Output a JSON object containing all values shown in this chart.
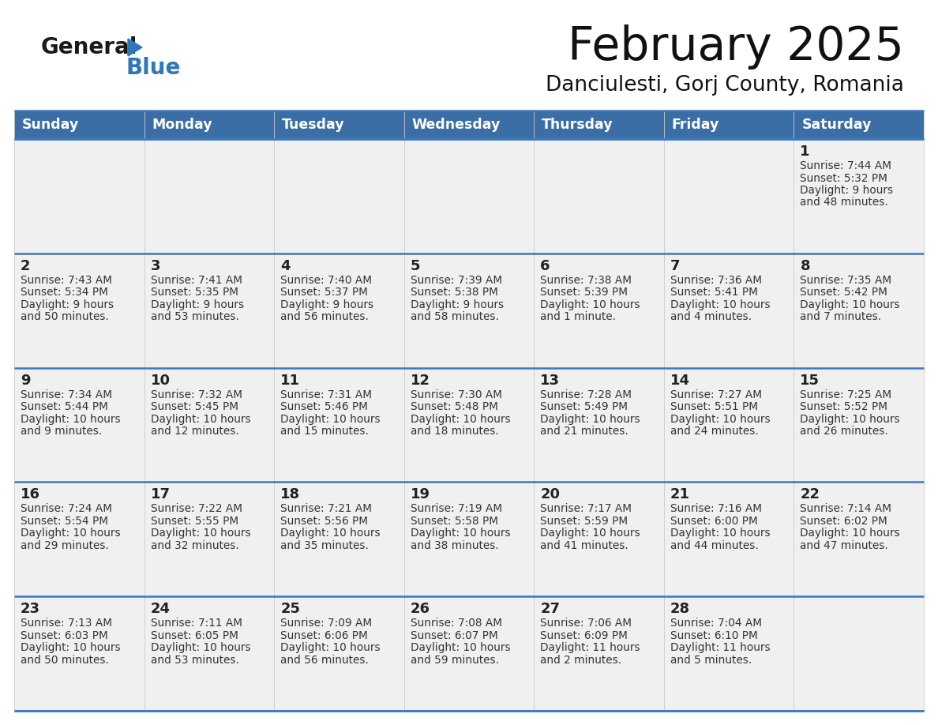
{
  "title": "February 2025",
  "subtitle": "Danciulesti, Gorj County, Romania",
  "days_of_week": [
    "Sunday",
    "Monday",
    "Tuesday",
    "Wednesday",
    "Thursday",
    "Friday",
    "Saturday"
  ],
  "header_bg": "#3B6EA5",
  "header_text": "#FFFFFF",
  "cell_bg": "#F0F0F0",
  "day_number_color": "#222222",
  "info_text_color": "#333333",
  "border_color": "#3B78C0",
  "logo_general_color": "#1a1a1a",
  "logo_blue_color": "#2E77BC",
  "calendar_data": [
    [
      null,
      null,
      null,
      null,
      null,
      null,
      {
        "day": 1,
        "sunrise": "7:44 AM",
        "sunset": "5:32 PM",
        "daylight": "9 hours and 48 minutes."
      }
    ],
    [
      {
        "day": 2,
        "sunrise": "7:43 AM",
        "sunset": "5:34 PM",
        "daylight": "9 hours and 50 minutes."
      },
      {
        "day": 3,
        "sunrise": "7:41 AM",
        "sunset": "5:35 PM",
        "daylight": "9 hours and 53 minutes."
      },
      {
        "day": 4,
        "sunrise": "7:40 AM",
        "sunset": "5:37 PM",
        "daylight": "9 hours and 56 minutes."
      },
      {
        "day": 5,
        "sunrise": "7:39 AM",
        "sunset": "5:38 PM",
        "daylight": "9 hours and 58 minutes."
      },
      {
        "day": 6,
        "sunrise": "7:38 AM",
        "sunset": "5:39 PM",
        "daylight": "10 hours and 1 minute."
      },
      {
        "day": 7,
        "sunrise": "7:36 AM",
        "sunset": "5:41 PM",
        "daylight": "10 hours and 4 minutes."
      },
      {
        "day": 8,
        "sunrise": "7:35 AM",
        "sunset": "5:42 PM",
        "daylight": "10 hours and 7 minutes."
      }
    ],
    [
      {
        "day": 9,
        "sunrise": "7:34 AM",
        "sunset": "5:44 PM",
        "daylight": "10 hours and 9 minutes."
      },
      {
        "day": 10,
        "sunrise": "7:32 AM",
        "sunset": "5:45 PM",
        "daylight": "10 hours and 12 minutes."
      },
      {
        "day": 11,
        "sunrise": "7:31 AM",
        "sunset": "5:46 PM",
        "daylight": "10 hours and 15 minutes."
      },
      {
        "day": 12,
        "sunrise": "7:30 AM",
        "sunset": "5:48 PM",
        "daylight": "10 hours and 18 minutes."
      },
      {
        "day": 13,
        "sunrise": "7:28 AM",
        "sunset": "5:49 PM",
        "daylight": "10 hours and 21 minutes."
      },
      {
        "day": 14,
        "sunrise": "7:27 AM",
        "sunset": "5:51 PM",
        "daylight": "10 hours and 24 minutes."
      },
      {
        "day": 15,
        "sunrise": "7:25 AM",
        "sunset": "5:52 PM",
        "daylight": "10 hours and 26 minutes."
      }
    ],
    [
      {
        "day": 16,
        "sunrise": "7:24 AM",
        "sunset": "5:54 PM",
        "daylight": "10 hours and 29 minutes."
      },
      {
        "day": 17,
        "sunrise": "7:22 AM",
        "sunset": "5:55 PM",
        "daylight": "10 hours and 32 minutes."
      },
      {
        "day": 18,
        "sunrise": "7:21 AM",
        "sunset": "5:56 PM",
        "daylight": "10 hours and 35 minutes."
      },
      {
        "day": 19,
        "sunrise": "7:19 AM",
        "sunset": "5:58 PM",
        "daylight": "10 hours and 38 minutes."
      },
      {
        "day": 20,
        "sunrise": "7:17 AM",
        "sunset": "5:59 PM",
        "daylight": "10 hours and 41 minutes."
      },
      {
        "day": 21,
        "sunrise": "7:16 AM",
        "sunset": "6:00 PM",
        "daylight": "10 hours and 44 minutes."
      },
      {
        "day": 22,
        "sunrise": "7:14 AM",
        "sunset": "6:02 PM",
        "daylight": "10 hours and 47 minutes."
      }
    ],
    [
      {
        "day": 23,
        "sunrise": "7:13 AM",
        "sunset": "6:03 PM",
        "daylight": "10 hours and 50 minutes."
      },
      {
        "day": 24,
        "sunrise": "7:11 AM",
        "sunset": "6:05 PM",
        "daylight": "10 hours and 53 minutes."
      },
      {
        "day": 25,
        "sunrise": "7:09 AM",
        "sunset": "6:06 PM",
        "daylight": "10 hours and 56 minutes."
      },
      {
        "day": 26,
        "sunrise": "7:08 AM",
        "sunset": "6:07 PM",
        "daylight": "10 hours and 59 minutes."
      },
      {
        "day": 27,
        "sunrise": "7:06 AM",
        "sunset": "6:09 PM",
        "daylight": "11 hours and 2 minutes."
      },
      {
        "day": 28,
        "sunrise": "7:04 AM",
        "sunset": "6:10 PM",
        "daylight": "11 hours and 5 minutes."
      },
      null
    ]
  ]
}
